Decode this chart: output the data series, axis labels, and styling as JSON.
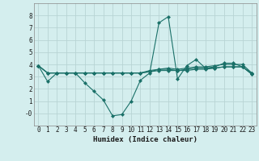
{
  "xlabel": "Humidex (Indice chaleur)",
  "bg_color": "#d4eeee",
  "grid_color": "#b8d4d4",
  "line_color": "#1a7068",
  "x_data": [
    0,
    1,
    2,
    3,
    4,
    5,
    6,
    7,
    8,
    9,
    10,
    11,
    12,
    13,
    14,
    15,
    16,
    17,
    18,
    19,
    20,
    21,
    22,
    23
  ],
  "series": [
    [
      3.9,
      2.6,
      3.3,
      3.3,
      3.3,
      2.5,
      1.8,
      1.1,
      -0.2,
      -0.1,
      1.0,
      2.7,
      3.3,
      7.4,
      7.9,
      2.8,
      3.9,
      4.4,
      3.7,
      3.8,
      4.1,
      4.1,
      3.8,
      3.3
    ],
    [
      3.9,
      3.3,
      3.3,
      3.3,
      3.3,
      3.3,
      3.3,
      3.3,
      3.3,
      3.3,
      3.3,
      3.3,
      3.5,
      3.6,
      3.7,
      3.6,
      3.7,
      3.8,
      3.8,
      3.9,
      4.0,
      4.0,
      4.0,
      3.3
    ],
    [
      3.9,
      3.3,
      3.3,
      3.3,
      3.3,
      3.3,
      3.3,
      3.3,
      3.3,
      3.3,
      3.3,
      3.3,
      3.4,
      3.6,
      3.6,
      3.5,
      3.5,
      3.6,
      3.6,
      3.7,
      3.8,
      3.8,
      3.8,
      3.2
    ],
    [
      3.9,
      3.3,
      3.3,
      3.3,
      3.3,
      3.3,
      3.3,
      3.3,
      3.3,
      3.3,
      3.3,
      3.3,
      3.4,
      3.5,
      3.5,
      3.5,
      3.6,
      3.7,
      3.7,
      3.7,
      3.8,
      3.8,
      3.8,
      3.2
    ]
  ],
  "ylim": [
    -1,
    9
  ],
  "yticks": [
    0,
    1,
    2,
    3,
    4,
    5,
    6,
    7,
    8
  ],
  "ytick_labels": [
    "-0",
    "1",
    "2",
    "3",
    "4",
    "5",
    "6",
    "7",
    "8"
  ],
  "xticks": [
    0,
    1,
    2,
    3,
    4,
    5,
    6,
    7,
    8,
    9,
    10,
    11,
    12,
    13,
    14,
    15,
    16,
    17,
    18,
    19,
    20,
    21,
    22,
    23
  ],
  "marker": "D",
  "markersize": 2,
  "linewidth": 0.8,
  "xlabel_fontsize": 6.5,
  "tick_fontsize": 5.5
}
